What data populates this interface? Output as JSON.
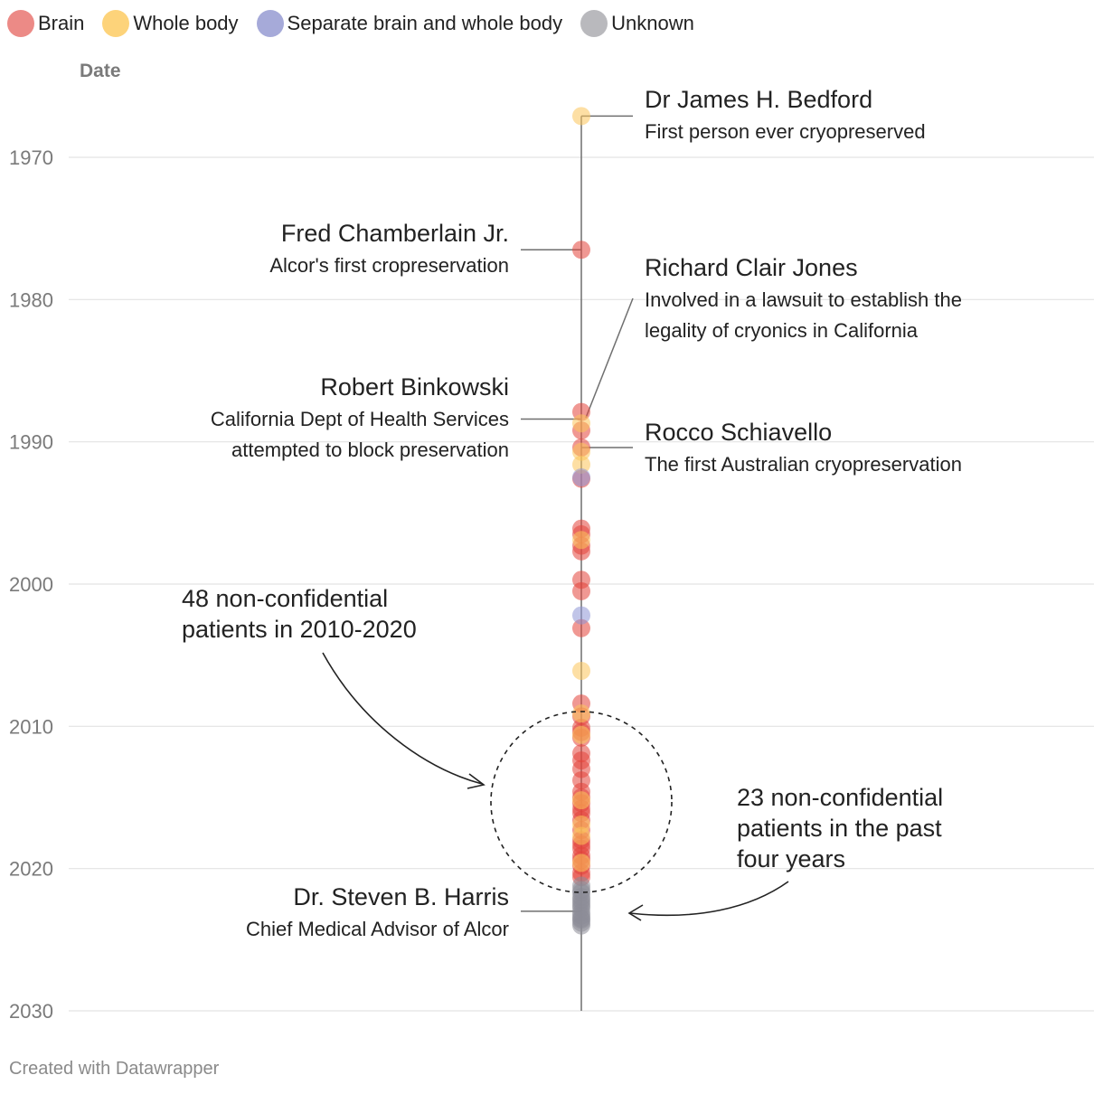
{
  "legend": [
    {
      "label": "Brain",
      "color": "#ec8a86"
    },
    {
      "label": "Whole body",
      "color": "#fdd37a"
    },
    {
      "label": "Separate brain and whole body",
      "color": "#a6aad9"
    },
    {
      "label": "Unknown",
      "color": "#b9b9bd"
    }
  ],
  "colors": {
    "Brain": "#e3433b",
    "Whole body": "#fbc45a",
    "Separate brain and whole body": "#8e95d6",
    "Unknown": "#8d8d97",
    "grid": "#e3e3e3",
    "axis_text": "#7a7a7a",
    "axis_line": "#6f6f6f",
    "annotation": "#222222"
  },
  "footer": {
    "credit": "Created with Datawrapper"
  },
  "chart_data": {
    "type": "scatter",
    "title": "",
    "ylabel": "Date",
    "ylim": [
      1961,
      2030
    ],
    "y_ticks": [
      "1970",
      "1980",
      "1990",
      "2000",
      "2010",
      "2020",
      "2030"
    ],
    "grid": true,
    "legend_position": "top-left",
    "series": [
      {
        "name": "Brain",
        "values": [
          1976.5,
          1987.9,
          1989.2,
          1990.4,
          1992.6,
          1996.1,
          1996.5,
          1997.3,
          1997.7,
          1999.7,
          2000.5,
          2003.1,
          2008.4,
          2009.3,
          2010.1,
          2010.4,
          2010.8,
          2011.9,
          2012.4,
          2013.0,
          2013.8,
          2014.6,
          2015.0,
          2015.4,
          2015.8,
          2016.1,
          2016.6,
          2017.3,
          2018.0,
          2018.3,
          2018.6,
          2019.1,
          2019.4,
          2019.8,
          2020.3,
          2020.6
        ]
      },
      {
        "name": "Whole body",
        "values": [
          1967.1,
          1988.7,
          1990.7,
          1991.6,
          1996.9,
          2006.1,
          2009.1,
          2010.6,
          2015.2,
          2016.9,
          2017.7,
          2019.6
        ]
      },
      {
        "name": "Separate brain and whole body",
        "values": [
          1992.5,
          2002.2
        ]
      },
      {
        "name": "Unknown",
        "values": [
          2021.2,
          2021.5,
          2021.7,
          2022.0,
          2022.2,
          2022.4,
          2022.6,
          2022.8,
          2023.1,
          2023.3,
          2023.5,
          2023.6,
          2023.8,
          2024.0
        ]
      }
    ],
    "annotations": [
      {
        "name": "Dr James H. Bedford",
        "description": [
          "First person ever cryopreserved"
        ],
        "date": 1967.1,
        "side": "right"
      },
      {
        "name": "Fred Chamberlain Jr.",
        "description": [
          "Alcor's first cropreservation"
        ],
        "date": 1976.5,
        "side": "left"
      },
      {
        "name": "Richard Clair Jones",
        "description": [
          "Involved in a lawsuit to establish the",
          "legality of cryonics in California"
        ],
        "date": 1988.0,
        "side": "right"
      },
      {
        "name": "Robert Binkowski",
        "description": [
          "California Dept of Health Services",
          "attempted to block preservation"
        ],
        "date": 1988.4,
        "side": "left"
      },
      {
        "name": "Rocco Schiavello",
        "description": [
          "The first Australian cryopreservation"
        ],
        "date": 1990.4,
        "side": "right"
      },
      {
        "name": "Dr. Steven B. Harris",
        "description": [
          "Chief Medical Advisor of Alcor"
        ],
        "date": 2023.0,
        "side": "left"
      }
    ],
    "callouts": [
      {
        "lines": [
          "48 non-confidential",
          "patients in 2010-2020"
        ]
      },
      {
        "lines": [
          "23 non-confidential",
          "patients in the past",
          "four years"
        ]
      }
    ]
  }
}
